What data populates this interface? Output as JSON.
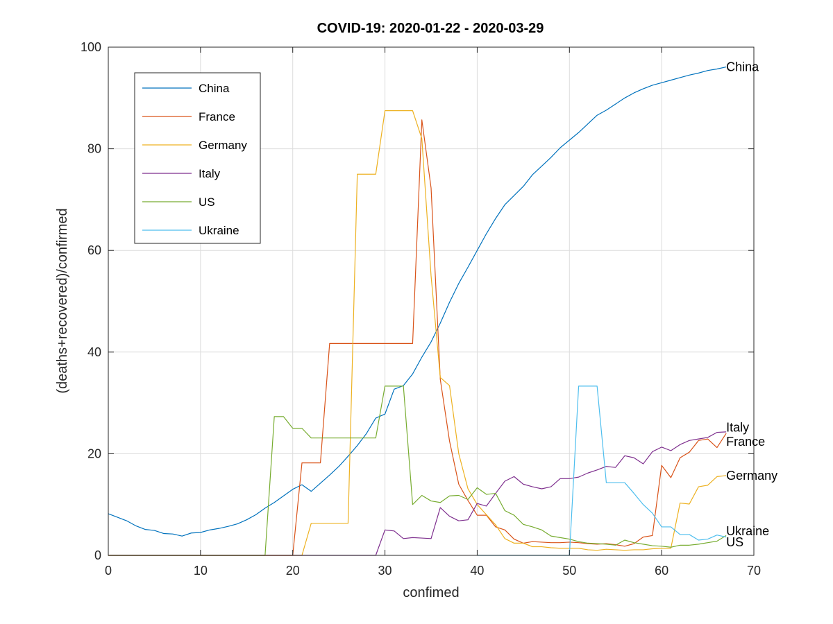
{
  "chart_data": {
    "type": "line",
    "title": "COVID-19: 2020-01-22 - 2020-03-29",
    "xlabel": "confimed",
    "ylabel": "(deaths+recovered)/confirmed",
    "xlim": [
      0,
      70
    ],
    "ylim": [
      0,
      100
    ],
    "xticks": [
      0,
      10,
      20,
      30,
      40,
      50,
      60,
      70
    ],
    "yticks": [
      0,
      20,
      40,
      60,
      80,
      100
    ],
    "grid": true,
    "legend_position": "top-left",
    "series": [
      {
        "name": "China",
        "color": "#0072BD",
        "points": [
          [
            0,
            8.2
          ],
          [
            1,
            7.5
          ],
          [
            2,
            6.8
          ],
          [
            3,
            5.8
          ],
          [
            4,
            5.1
          ],
          [
            5,
            4.9
          ],
          [
            6,
            4.3
          ],
          [
            7,
            4.2
          ],
          [
            8,
            3.8
          ],
          [
            9,
            4.4
          ],
          [
            10,
            4.5
          ],
          [
            11,
            5.0
          ],
          [
            12,
            5.3
          ],
          [
            13,
            5.7
          ],
          [
            14,
            6.2
          ],
          [
            15,
            7.0
          ],
          [
            16,
            8.0
          ],
          [
            17,
            9.3
          ],
          [
            18,
            10.4
          ],
          [
            19,
            11.7
          ],
          [
            20,
            13.0
          ],
          [
            21,
            13.9
          ],
          [
            22,
            12.6
          ],
          [
            23,
            14.2
          ],
          [
            24,
            15.8
          ],
          [
            25,
            17.5
          ],
          [
            26,
            19.5
          ],
          [
            27,
            21.6
          ],
          [
            28,
            24.0
          ],
          [
            29,
            27.0
          ],
          [
            30,
            27.8
          ],
          [
            31,
            32.7
          ],
          [
            32,
            33.4
          ],
          [
            33,
            35.7
          ],
          [
            34,
            39.0
          ],
          [
            35,
            42.0
          ],
          [
            36,
            45.7
          ],
          [
            37,
            49.8
          ],
          [
            38,
            53.5
          ],
          [
            39,
            56.7
          ],
          [
            40,
            60.0
          ],
          [
            41,
            63.3
          ],
          [
            42,
            66.3
          ],
          [
            43,
            69.0
          ],
          [
            44,
            70.8
          ],
          [
            45,
            72.6
          ],
          [
            46,
            74.9
          ],
          [
            47,
            76.6
          ],
          [
            48,
            78.3
          ],
          [
            49,
            80.2
          ],
          [
            50,
            81.7
          ],
          [
            51,
            83.2
          ],
          [
            52,
            84.9
          ],
          [
            53,
            86.6
          ],
          [
            54,
            87.6
          ],
          [
            55,
            88.8
          ],
          [
            56,
            90.0
          ],
          [
            57,
            91.0
          ],
          [
            58,
            91.8
          ],
          [
            59,
            92.5
          ],
          [
            60,
            93.0
          ],
          [
            61,
            93.5
          ],
          [
            62,
            94.0
          ],
          [
            63,
            94.5
          ],
          [
            64,
            94.9
          ],
          [
            65,
            95.4
          ],
          [
            66,
            95.7
          ],
          [
            67,
            96.1
          ]
        ]
      },
      {
        "name": "France",
        "color": "#D95319",
        "points": [
          [
            0,
            0
          ],
          [
            19,
            0
          ],
          [
            20,
            0
          ],
          [
            21,
            18.2
          ],
          [
            22,
            18.2
          ],
          [
            23,
            18.2
          ],
          [
            24,
            41.7
          ],
          [
            25,
            41.7
          ],
          [
            32,
            41.7
          ],
          [
            33,
            41.7
          ],
          [
            34,
            85.7
          ],
          [
            35,
            72.3
          ],
          [
            36,
            34.6
          ],
          [
            37,
            22.5
          ],
          [
            38,
            14.0
          ],
          [
            39,
            10.8
          ],
          [
            40,
            7.9
          ],
          [
            41,
            7.9
          ],
          [
            42,
            5.6
          ],
          [
            43,
            5.0
          ],
          [
            44,
            3.2
          ],
          [
            45,
            2.4
          ],
          [
            46,
            2.7
          ],
          [
            47,
            2.6
          ],
          [
            48,
            2.5
          ],
          [
            49,
            2.5
          ],
          [
            50,
            2.6
          ],
          [
            51,
            2.5
          ],
          [
            52,
            2.3
          ],
          [
            53,
            2.2
          ],
          [
            54,
            2.3
          ],
          [
            55,
            2.1
          ],
          [
            56,
            1.8
          ],
          [
            57,
            2.3
          ],
          [
            58,
            3.6
          ],
          [
            59,
            3.9
          ],
          [
            60,
            17.7
          ],
          [
            61,
            15.3
          ],
          [
            62,
            19.2
          ],
          [
            63,
            20.3
          ],
          [
            64,
            22.6
          ],
          [
            65,
            22.9
          ],
          [
            66,
            21.2
          ],
          [
            67,
            24.0
          ]
        ]
      },
      {
        "name": "Germany",
        "color": "#EDB120",
        "points": [
          [
            0,
            0
          ],
          [
            21,
            0
          ],
          [
            22,
            6.3
          ],
          [
            23,
            6.3
          ],
          [
            24,
            6.3
          ],
          [
            25,
            6.3
          ],
          [
            26,
            6.3
          ],
          [
            27,
            75.0
          ],
          [
            28,
            75.0
          ],
          [
            29,
            75.0
          ],
          [
            30,
            87.5
          ],
          [
            31,
            87.5
          ],
          [
            32,
            87.5
          ],
          [
            33,
            87.5
          ],
          [
            34,
            82.0
          ],
          [
            35,
            55.0
          ],
          [
            36,
            35.0
          ],
          [
            37,
            33.4
          ],
          [
            38,
            20.0
          ],
          [
            39,
            13.1
          ],
          [
            40,
            10.0
          ],
          [
            41,
            8.0
          ],
          [
            42,
            6.0
          ],
          [
            43,
            3.3
          ],
          [
            44,
            2.4
          ],
          [
            45,
            2.4
          ],
          [
            46,
            1.7
          ],
          [
            47,
            1.7
          ],
          [
            48,
            1.5
          ],
          [
            49,
            1.4
          ],
          [
            50,
            1.4
          ],
          [
            51,
            1.4
          ],
          [
            52,
            1.1
          ],
          [
            53,
            1.0
          ],
          [
            54,
            1.2
          ],
          [
            55,
            1.1
          ],
          [
            56,
            1.0
          ],
          [
            57,
            1.1
          ],
          [
            58,
            1.1
          ],
          [
            59,
            1.3
          ],
          [
            60,
            1.4
          ],
          [
            61,
            1.4
          ],
          [
            62,
            10.3
          ],
          [
            63,
            10.1
          ],
          [
            64,
            13.5
          ],
          [
            65,
            13.8
          ],
          [
            66,
            15.5
          ],
          [
            67,
            15.7
          ]
        ]
      },
      {
        "name": "Italy",
        "color": "#7E2F8E",
        "points": [
          [
            0,
            0
          ],
          [
            28,
            0
          ],
          [
            29,
            0
          ],
          [
            30,
            5.0
          ],
          [
            31,
            4.8
          ],
          [
            32,
            3.3
          ],
          [
            33,
            3.5
          ],
          [
            34,
            3.4
          ],
          [
            35,
            3.3
          ],
          [
            36,
            9.4
          ],
          [
            37,
            7.7
          ],
          [
            38,
            6.8
          ],
          [
            39,
            7.0
          ],
          [
            40,
            10.2
          ],
          [
            41,
            9.7
          ],
          [
            42,
            12.2
          ],
          [
            43,
            14.6
          ],
          [
            44,
            15.5
          ],
          [
            45,
            14.0
          ],
          [
            46,
            13.5
          ],
          [
            47,
            13.1
          ],
          [
            48,
            13.5
          ],
          [
            49,
            15.1
          ],
          [
            50,
            15.1
          ],
          [
            51,
            15.4
          ],
          [
            52,
            16.2
          ],
          [
            53,
            16.8
          ],
          [
            54,
            17.5
          ],
          [
            55,
            17.3
          ],
          [
            56,
            19.6
          ],
          [
            57,
            19.2
          ],
          [
            58,
            18.0
          ],
          [
            59,
            20.4
          ],
          [
            60,
            21.3
          ],
          [
            61,
            20.6
          ],
          [
            62,
            21.8
          ],
          [
            63,
            22.6
          ],
          [
            64,
            22.9
          ],
          [
            65,
            23.2
          ],
          [
            66,
            24.2
          ],
          [
            67,
            24.3
          ]
        ]
      },
      {
        "name": "US",
        "color": "#77AC30",
        "points": [
          [
            0,
            0
          ],
          [
            16,
            0
          ],
          [
            17,
            0
          ],
          [
            18,
            27.3
          ],
          [
            19,
            27.3
          ],
          [
            20,
            25.0
          ],
          [
            21,
            25.0
          ],
          [
            22,
            23.1
          ],
          [
            23,
            23.1
          ],
          [
            28,
            23.1
          ],
          [
            29,
            23.1
          ],
          [
            30,
            33.3
          ],
          [
            31,
            33.3
          ],
          [
            32,
            33.3
          ],
          [
            33,
            10.0
          ],
          [
            34,
            11.8
          ],
          [
            35,
            10.7
          ],
          [
            36,
            10.4
          ],
          [
            37,
            11.7
          ],
          [
            38,
            11.8
          ],
          [
            39,
            11.0
          ],
          [
            40,
            13.3
          ],
          [
            41,
            12.0
          ],
          [
            42,
            12.2
          ],
          [
            43,
            8.8
          ],
          [
            44,
            7.9
          ],
          [
            45,
            6.1
          ],
          [
            46,
            5.6
          ],
          [
            47,
            5.0
          ],
          [
            48,
            3.8
          ],
          [
            49,
            3.5
          ],
          [
            50,
            3.2
          ],
          [
            51,
            2.7
          ],
          [
            52,
            2.4
          ],
          [
            53,
            2.3
          ],
          [
            54,
            2.2
          ],
          [
            55,
            2.0
          ],
          [
            56,
            3.0
          ],
          [
            57,
            2.5
          ],
          [
            58,
            2.2
          ],
          [
            59,
            1.9
          ],
          [
            60,
            1.8
          ],
          [
            61,
            1.6
          ],
          [
            62,
            2.0
          ],
          [
            63,
            2.0
          ],
          [
            64,
            2.2
          ],
          [
            65,
            2.5
          ],
          [
            66,
            2.8
          ],
          [
            67,
            3.9
          ]
        ]
      },
      {
        "name": "Ukraine",
        "color": "#4DBEEE",
        "points": [
          [
            40,
            0
          ],
          [
            50,
            0
          ],
          [
            51,
            33.3
          ],
          [
            52,
            33.3
          ],
          [
            53,
            33.3
          ],
          [
            54,
            14.3
          ],
          [
            55,
            14.3
          ],
          [
            56,
            14.3
          ],
          [
            57,
            12.2
          ],
          [
            58,
            10.0
          ],
          [
            59,
            8.3
          ],
          [
            60,
            5.6
          ],
          [
            61,
            5.6
          ],
          [
            62,
            4.1
          ],
          [
            63,
            4.1
          ],
          [
            64,
            3.0
          ],
          [
            65,
            3.2
          ],
          [
            66,
            4.0
          ],
          [
            67,
            3.6
          ]
        ]
      }
    ],
    "end_labels": [
      {
        "series": "China",
        "text": "China",
        "y": 96.1
      },
      {
        "series": "Italy",
        "text": "Italy",
        "y": 25.2
      },
      {
        "series": "France",
        "text": "France",
        "y": 22.4
      },
      {
        "series": "Germany",
        "text": "Germany",
        "y": 15.7
      },
      {
        "series": "Ukraine",
        "text": "Ukraine",
        "y": 4.8
      },
      {
        "series": "US",
        "text": "US",
        "y": 2.6
      }
    ]
  }
}
